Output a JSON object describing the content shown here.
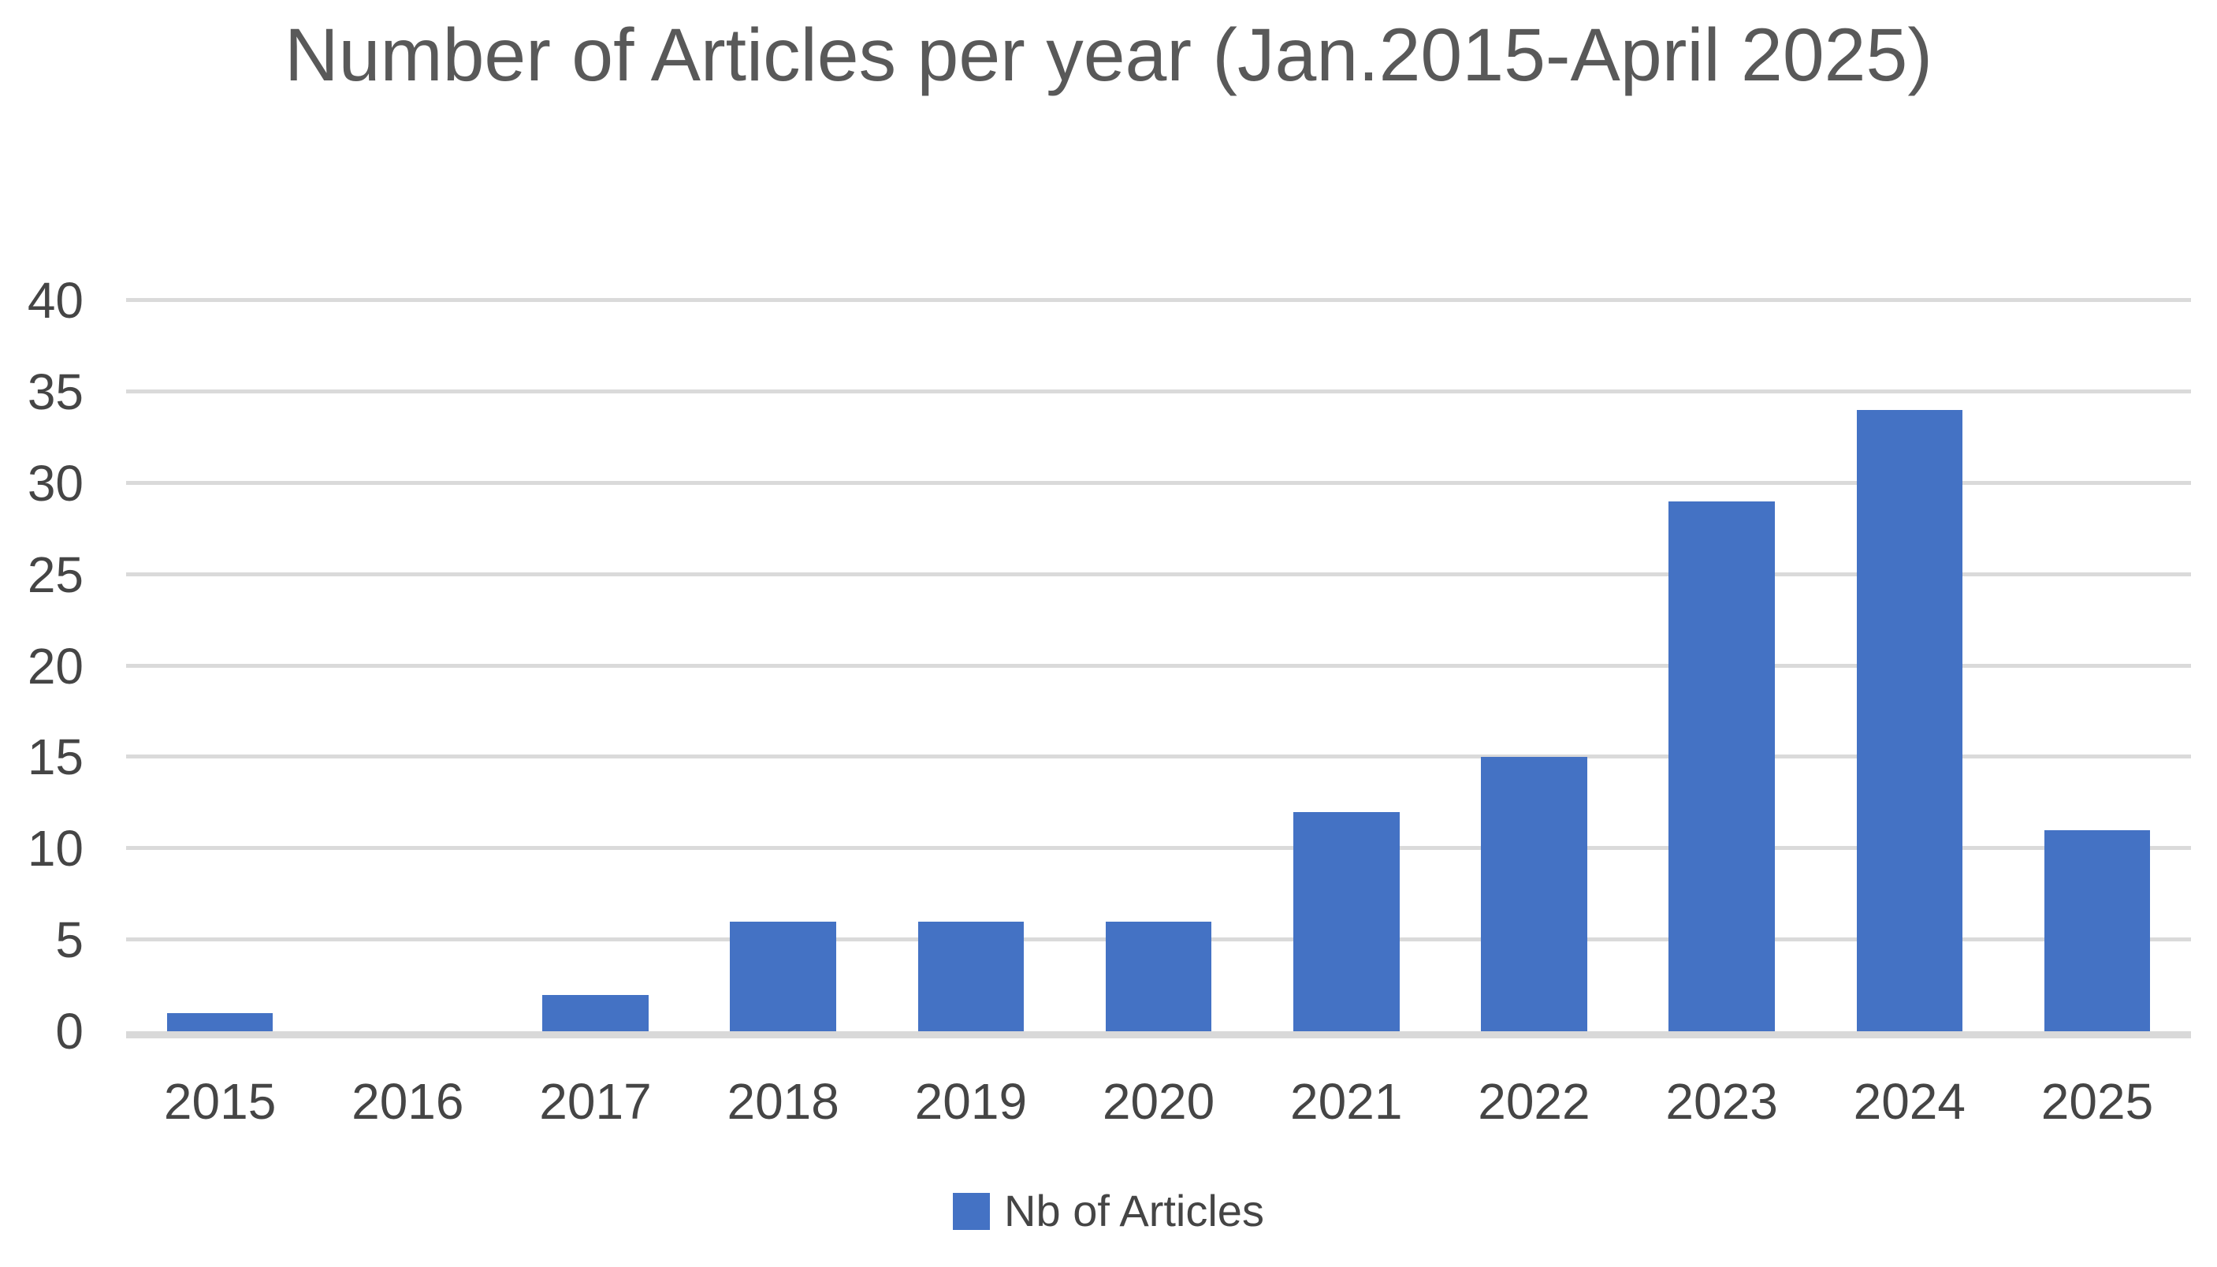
{
  "chart_data": {
    "type": "bar",
    "title": "Number of Articles per year (Jan.2015-April 2025)",
    "categories": [
      "2015",
      "2016",
      "2017",
      "2018",
      "2019",
      "2020",
      "2021",
      "2022",
      "2023",
      "2024",
      "2025"
    ],
    "values": [
      1,
      0,
      2,
      6,
      6,
      6,
      12,
      15,
      29,
      34,
      11
    ],
    "series": [
      {
        "name": "Nb of Articles",
        "values": [
          1,
          0,
          2,
          6,
          6,
          6,
          12,
          15,
          29,
          34,
          11
        ]
      }
    ],
    "xlabel": "",
    "ylabel": "",
    "ylim": [
      0,
      40
    ],
    "yticks": [
      0,
      5,
      10,
      15,
      20,
      25,
      30,
      35,
      40
    ],
    "grid": true,
    "legend_position": "bottom",
    "colors": {
      "bar": "#4472C4",
      "gridline": "#DADADA",
      "axis_line": "#D9D9D9",
      "title_text": "#595959",
      "tick_text": "#454545"
    }
  },
  "legend": {
    "label": "Nb of Articles"
  }
}
